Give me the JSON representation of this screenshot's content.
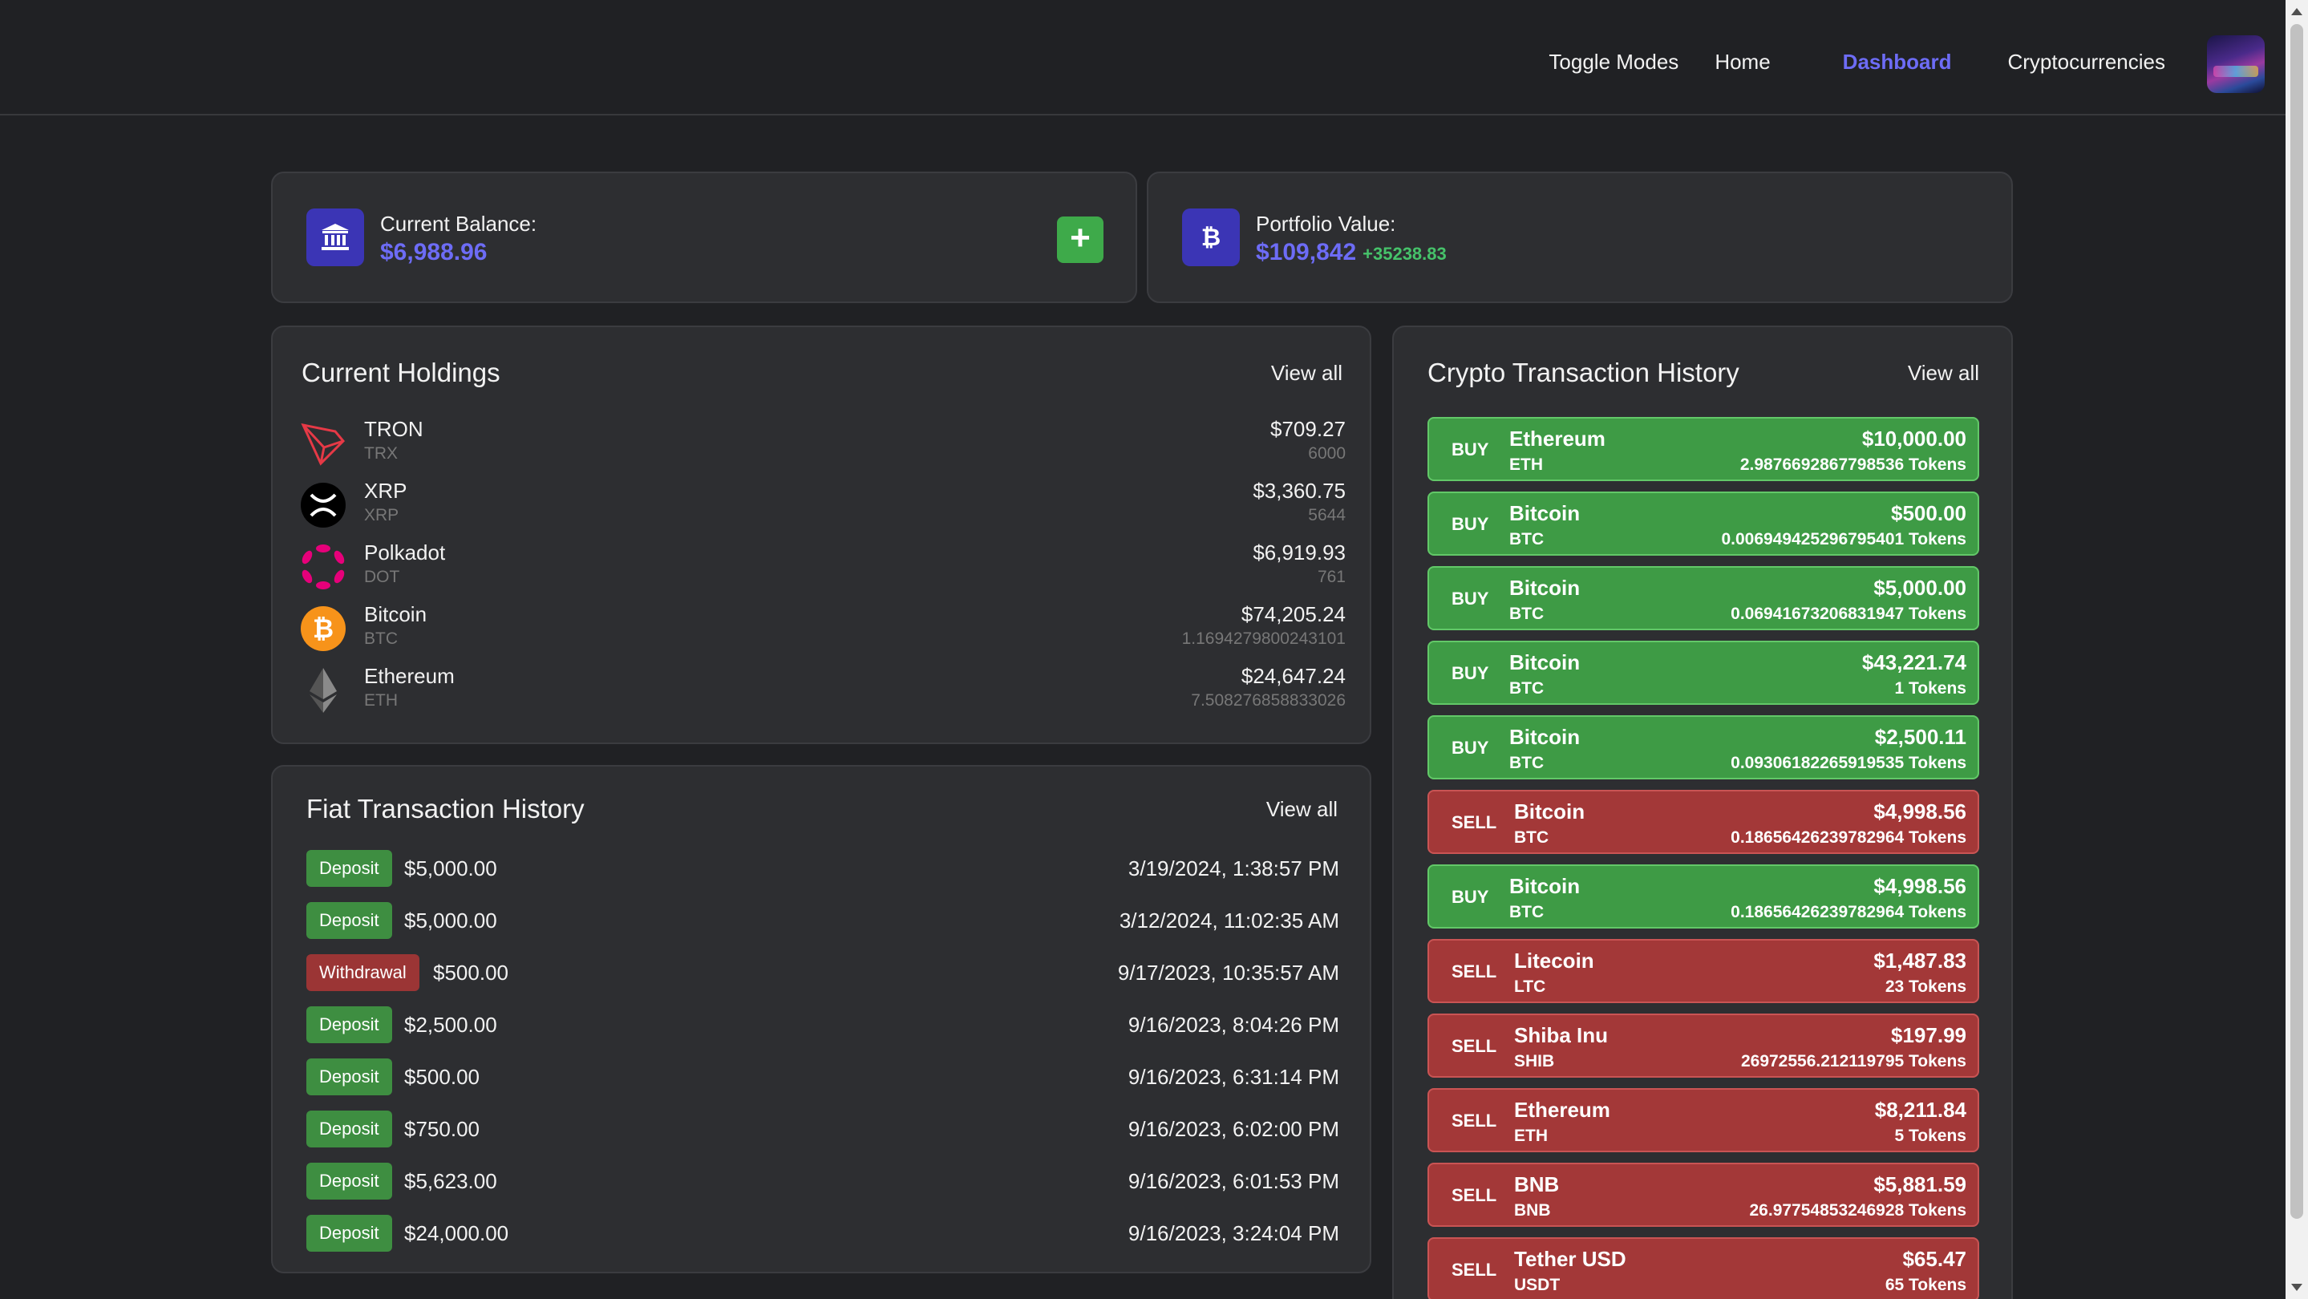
{
  "nav": {
    "toggle": "Toggle Modes",
    "home": "Home",
    "dashboard": "Dashboard",
    "cryptocurrencies": "Cryptocurrencies"
  },
  "balance": {
    "label": "Current Balance:",
    "value": "$6,988.96",
    "add_label": "+"
  },
  "portfolio": {
    "label": "Portfolio Value:",
    "value": "$109,842",
    "change": "+35238.83"
  },
  "holdings": {
    "title": "Current Holdings",
    "view_all": "View all",
    "items": [
      {
        "name": "TRON",
        "symbol": "TRX",
        "value": "$709.27",
        "qty": "6000",
        "icon": "tron-icon"
      },
      {
        "name": "XRP",
        "symbol": "XRP",
        "value": "$3,360.75",
        "qty": "5644",
        "icon": "xrp-icon"
      },
      {
        "name": "Polkadot",
        "symbol": "DOT",
        "value": "$6,919.93",
        "qty": "761",
        "icon": "polkadot-icon"
      },
      {
        "name": "Bitcoin",
        "symbol": "BTC",
        "value": "$74,205.24",
        "qty": "1.1694279800243101",
        "icon": "bitcoin-icon"
      },
      {
        "name": "Ethereum",
        "symbol": "ETH",
        "value": "$24,647.24",
        "qty": "7.508276858833026",
        "icon": "ethereum-icon"
      }
    ]
  },
  "fiat": {
    "title": "Fiat Transaction History",
    "view_all": "View all",
    "items": [
      {
        "type": "Deposit",
        "amount": "$5,000.00",
        "date": "3/19/2024, 1:38:57 PM"
      },
      {
        "type": "Deposit",
        "amount": "$5,000.00",
        "date": "3/12/2024, 11:02:35 AM"
      },
      {
        "type": "Withdrawal",
        "amount": "$500.00",
        "date": "9/17/2023, 10:35:57 AM"
      },
      {
        "type": "Deposit",
        "amount": "$2,500.00",
        "date": "9/16/2023, 8:04:26 PM"
      },
      {
        "type": "Deposit",
        "amount": "$500.00",
        "date": "9/16/2023, 6:31:14 PM"
      },
      {
        "type": "Deposit",
        "amount": "$750.00",
        "date": "9/16/2023, 6:02:00 PM"
      },
      {
        "type": "Deposit",
        "amount": "$5,623.00",
        "date": "9/16/2023, 6:01:53 PM"
      },
      {
        "type": "Deposit",
        "amount": "$24,000.00",
        "date": "9/16/2023, 3:24:04 PM"
      }
    ]
  },
  "crypto": {
    "title": "Crypto Transaction History",
    "view_all": "View all",
    "items": [
      {
        "type": "BUY",
        "name": "Ethereum",
        "symbol": "ETH",
        "amount": "$10,000.00",
        "tokens": "2.9876692867798536 Tokens"
      },
      {
        "type": "BUY",
        "name": "Bitcoin",
        "symbol": "BTC",
        "amount": "$500.00",
        "tokens": "0.006949425296795401 Tokens"
      },
      {
        "type": "BUY",
        "name": "Bitcoin",
        "symbol": "BTC",
        "amount": "$5,000.00",
        "tokens": "0.06941673206831947 Tokens"
      },
      {
        "type": "BUY",
        "name": "Bitcoin",
        "symbol": "BTC",
        "amount": "$43,221.74",
        "tokens": "1 Tokens"
      },
      {
        "type": "BUY",
        "name": "Bitcoin",
        "symbol": "BTC",
        "amount": "$2,500.11",
        "tokens": "0.09306182265919535 Tokens"
      },
      {
        "type": "SELL",
        "name": "Bitcoin",
        "symbol": "BTC",
        "amount": "$4,998.56",
        "tokens": "0.18656426239782964 Tokens"
      },
      {
        "type": "BUY",
        "name": "Bitcoin",
        "symbol": "BTC",
        "amount": "$4,998.56",
        "tokens": "0.18656426239782964 Tokens"
      },
      {
        "type": "SELL",
        "name": "Litecoin",
        "symbol": "LTC",
        "amount": "$1,487.83",
        "tokens": "23 Tokens"
      },
      {
        "type": "SELL",
        "name": "Shiba Inu",
        "symbol": "SHIB",
        "amount": "$197.99",
        "tokens": "26972556.212119795 Tokens"
      },
      {
        "type": "SELL",
        "name": "Ethereum",
        "symbol": "ETH",
        "amount": "$8,211.84",
        "tokens": "5 Tokens"
      },
      {
        "type": "SELL",
        "name": "BNB",
        "symbol": "BNB",
        "amount": "$5,881.59",
        "tokens": "26.97754853246928 Tokens"
      },
      {
        "type": "SELL",
        "name": "Tether USD",
        "symbol": "USDT",
        "amount": "$65.47",
        "tokens": "65 Tokens"
      }
    ]
  },
  "colors": {
    "accent": "#6d6cf6",
    "buy": "#3e9b45",
    "sell": "#a33838",
    "deposit": "#3e8e41",
    "withdrawal": "#9b3535"
  }
}
